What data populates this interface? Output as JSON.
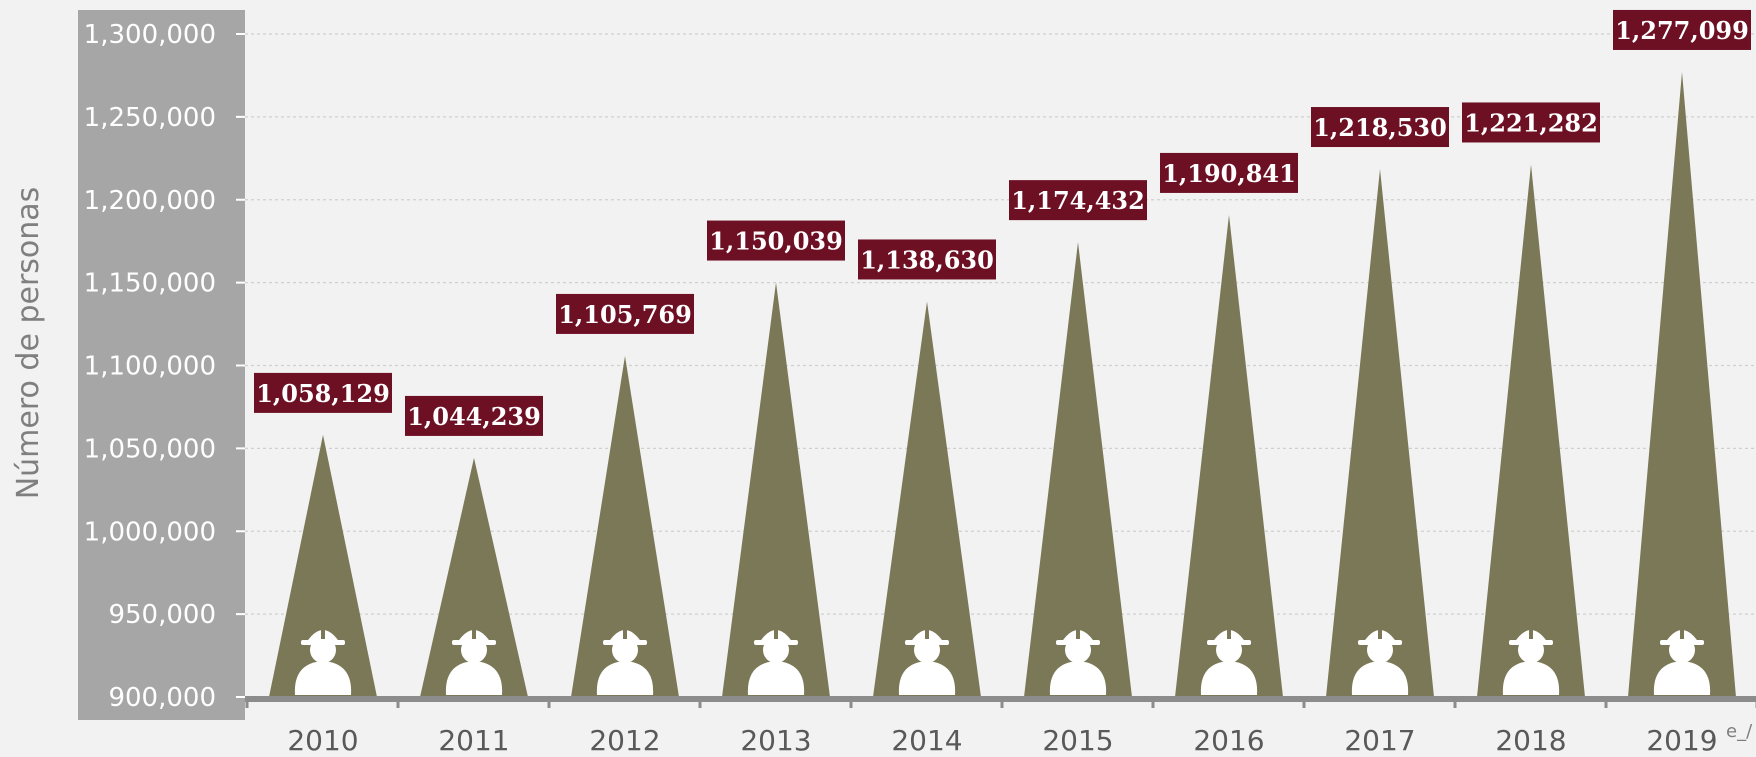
{
  "chart_data": {
    "type": "bar",
    "bar_shape": "triangle",
    "categories": [
      "2010",
      "2011",
      "2012",
      "2013",
      "2014",
      "2015",
      "2016",
      "2017",
      "2018",
      "2019"
    ],
    "values": [
      1058129,
      1044239,
      1105769,
      1150039,
      1138630,
      1174432,
      1190841,
      1218530,
      1221282,
      1277099
    ],
    "data_labels": [
      "1,058,129",
      "1,044,239",
      "1,105,769",
      "1,150,039",
      "1,138,630",
      "1,174,432",
      "1,190,841",
      "1,218,530",
      "1,221,282",
      "1,277,099"
    ],
    "title": "",
    "xlabel": "",
    "ylabel": "Número de personas",
    "ylim": [
      900000,
      1300000
    ],
    "y_ticks": [
      900000,
      950000,
      1000000,
      1050000,
      1100000,
      1150000,
      1200000,
      1250000,
      1300000
    ],
    "y_tick_labels": [
      "900,000",
      "950,000",
      "1,000,000",
      "1,050,000",
      "1,100,000",
      "1,150,000",
      "1,200,000",
      "1,250,000",
      "1,300,000"
    ],
    "grid": true,
    "legend": "none",
    "bar_icon": "worker-helmet-icon",
    "footnote": "e_/",
    "colors": {
      "bar": "#7b7857",
      "label_bg": "#6e1024",
      "y_axis_band": "#a6a6a6",
      "axis_line": "#8c8c8c",
      "icon": "#ffffff",
      "background": "#f2f2f2"
    }
  }
}
